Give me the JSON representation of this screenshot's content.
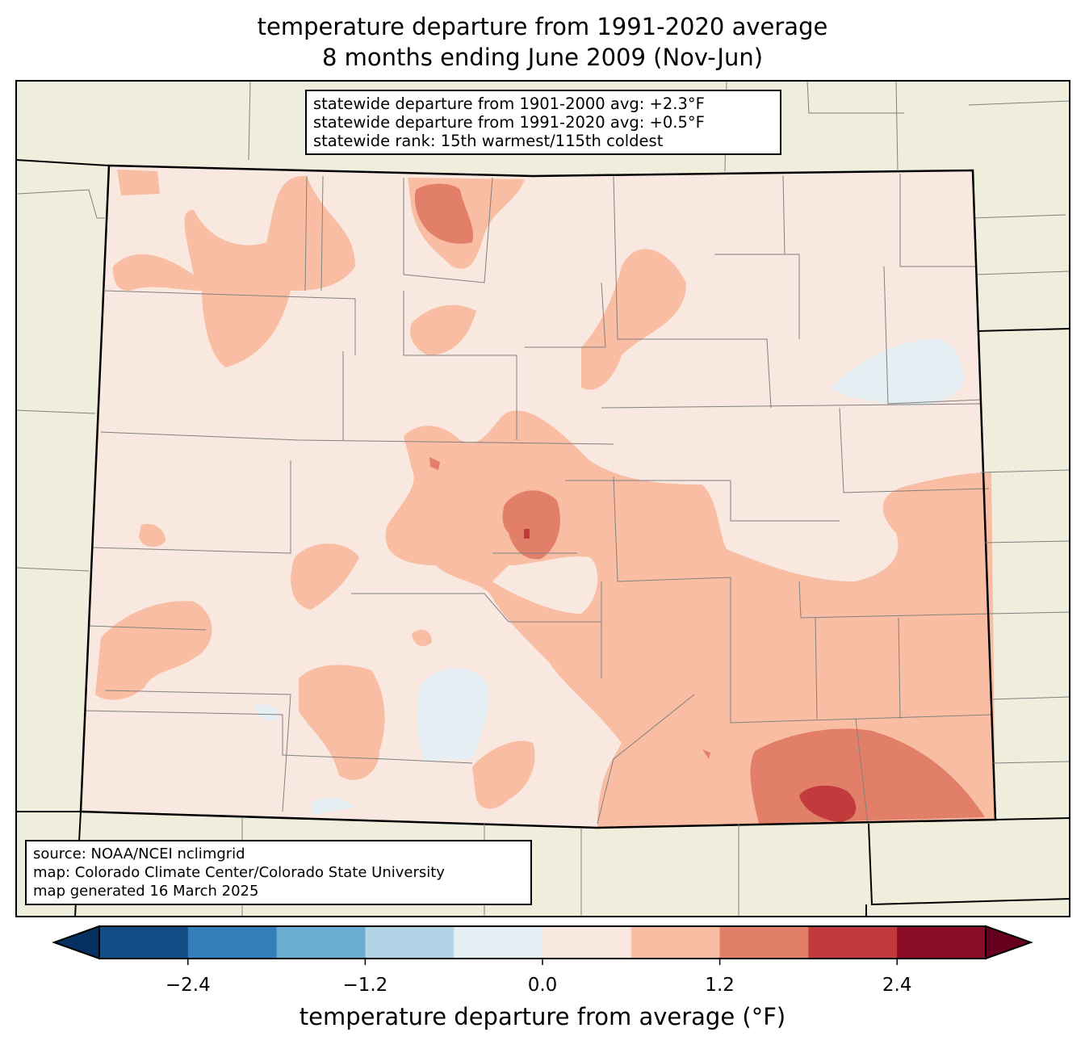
{
  "title": {
    "line1": "temperature departure from 1991-2020 average",
    "line2": "8 months ending June 2009 (Nov-Jun)"
  },
  "info_box": {
    "line1": "statewide departure from 1901-2000 avg: +2.3°F",
    "line2": "statewide departure from 1991-2020 avg: +0.5°F",
    "line3": "statewide rank: 15th warmest/115th coldest"
  },
  "source_box": {
    "line1": "source: NOAA/NCEI nclimgrid",
    "line2": "map: Colorado Climate Center/Colorado State University",
    "line3": "map generated 16 March 2025"
  },
  "colorbar": {
    "label": "temperature departure from average (°F)",
    "bounds": [
      -3.0,
      3.0
    ],
    "under_color": "#053061",
    "over_color": "#67001f",
    "colors": [
      "#144c87",
      "#327fbb",
      "#6bacd1",
      "#b1d5e7",
      "#e5eef3",
      "#f9e8e0",
      "#f9bda3",
      "#e27f68",
      "#c23a3b",
      "#8a0b24"
    ],
    "ticks": [
      {
        "value": -2.4,
        "label": "−2.4"
      },
      {
        "value": -1.2,
        "label": "−1.2"
      },
      {
        "value": 0.0,
        "label": "0.0"
      },
      {
        "value": 1.2,
        "label": "1.2"
      },
      {
        "value": 2.4,
        "label": "2.4"
      }
    ]
  },
  "map_colors": {
    "land": "#efeedc",
    "base": "#f9e8e0",
    "warm1": "#f9bda3",
    "warm2": "#e27f68",
    "warm3": "#c23a3b",
    "cool": "#e5eef3"
  }
}
